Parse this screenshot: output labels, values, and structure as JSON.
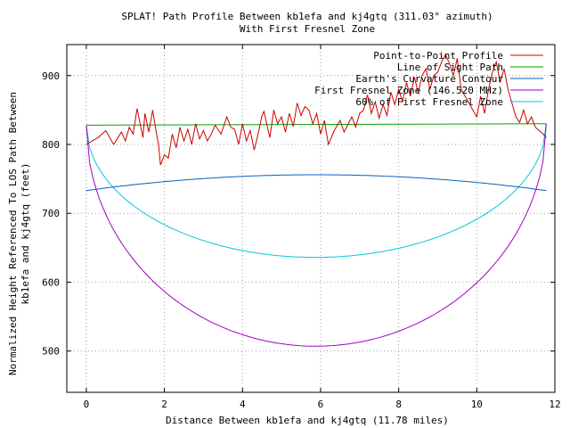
{
  "chart_data": {
    "type": "line",
    "title": "SPLAT! Path Profile Between kb1efa and kj4gtq (311.03° azimuth)",
    "subtitle": "With First Fresnel Zone",
    "xlabel": "Distance Between kb1efa and kj4gtq (11.78 miles)",
    "ylabel_lines": [
      "Normalized Height Referenced To LOS Path Between",
      "kb1efa and kj4gtq (feet)"
    ],
    "xlim": [
      -0.5,
      12
    ],
    "ylim": [
      440,
      945
    ],
    "x_ticks": [
      0,
      2,
      4,
      6,
      8,
      10,
      12
    ],
    "y_ticks": [
      500,
      600,
      700,
      800,
      900
    ],
    "grid": true,
    "legend_position": "top-right",
    "series": [
      {
        "name": "Point-to-Point Profile",
        "color": "#cc0000",
        "x": [
          0,
          0.15,
          0.3,
          0.5,
          0.7,
          0.9,
          1.0,
          1.1,
          1.2,
          1.3,
          1.45,
          1.5,
          1.6,
          1.7,
          1.8,
          1.85,
          1.9,
          2.0,
          2.1,
          2.2,
          2.3,
          2.4,
          2.5,
          2.6,
          2.7,
          2.8,
          2.9,
          3.0,
          3.1,
          3.2,
          3.3,
          3.45,
          3.6,
          3.7,
          3.8,
          3.9,
          4.0,
          4.1,
          4.2,
          4.3,
          4.4,
          4.5,
          4.55,
          4.6,
          4.7,
          4.8,
          4.9,
          5.0,
          5.1,
          5.2,
          5.3,
          5.4,
          5.5,
          5.6,
          5.7,
          5.8,
          5.9,
          6.0,
          6.1,
          6.2,
          6.35,
          6.5,
          6.6,
          6.8,
          6.9,
          7.0,
          7.1,
          7.2,
          7.3,
          7.4,
          7.5,
          7.6,
          7.7,
          7.8,
          7.9,
          8.0,
          8.1,
          8.2,
          8.3,
          8.4,
          8.5,
          8.6,
          8.7,
          8.8,
          8.9,
          9.0,
          9.1,
          9.2,
          9.3,
          9.4,
          9.5,
          9.6,
          9.7,
          9.8,
          9.9,
          10.0,
          10.1,
          10.2,
          10.3,
          10.4,
          10.5,
          10.6,
          10.7,
          10.8,
          10.9,
          11.0,
          11.1,
          11.2,
          11.3,
          11.4,
          11.5,
          11.6,
          11.7,
          11.78
        ],
        "y": [
          800,
          805,
          810,
          820,
          800,
          818,
          805,
          825,
          815,
          852,
          810,
          845,
          818,
          850,
          815,
          800,
          770,
          785,
          780,
          815,
          795,
          825,
          805,
          822,
          800,
          830,
          808,
          820,
          805,
          815,
          828,
          815,
          840,
          825,
          822,
          800,
          830,
          805,
          820,
          792,
          815,
          842,
          848,
          835,
          810,
          850,
          830,
          840,
          818,
          845,
          826,
          860,
          842,
          855,
          850,
          830,
          845,
          815,
          835,
          800,
          820,
          835,
          818,
          840,
          825,
          845,
          850,
          872,
          845,
          862,
          838,
          858,
          842,
          876,
          858,
          880,
          862,
          890,
          870,
          898,
          875,
          900,
          910,
          880,
          900,
          905,
          920,
          930,
          918,
          900,
          925,
          880,
          870,
          860,
          850,
          840,
          870,
          845,
          880,
          905,
          920,
          890,
          910,
          880,
          860,
          840,
          832,
          850,
          830,
          840,
          825,
          820,
          815,
          810
        ]
      },
      {
        "name": "Line of Sight Path",
        "color": "#00a000",
        "x": [
          0,
          11.78
        ],
        "y": [
          828,
          830
        ]
      },
      {
        "name": "Earth's Curvature Contour",
        "color": "#0060c0",
        "shape": "arc",
        "x": [
          0,
          5.89,
          11.78
        ],
        "y": [
          733,
          756,
          733
        ]
      },
      {
        "name": "First Fresnel Zone (146.520 MHz)",
        "color": "#a000c0",
        "shape": "ellipse",
        "x": [
          0,
          5.89,
          11.78
        ],
        "y": [
          828,
          507,
          830
        ]
      },
      {
        "name": "60% of First Fresnel Zone",
        "color": "#00c8d8",
        "shape": "ellipse",
        "x": [
          0,
          5.89,
          11.78
        ],
        "y": [
          828,
          636,
          830
        ]
      }
    ]
  }
}
